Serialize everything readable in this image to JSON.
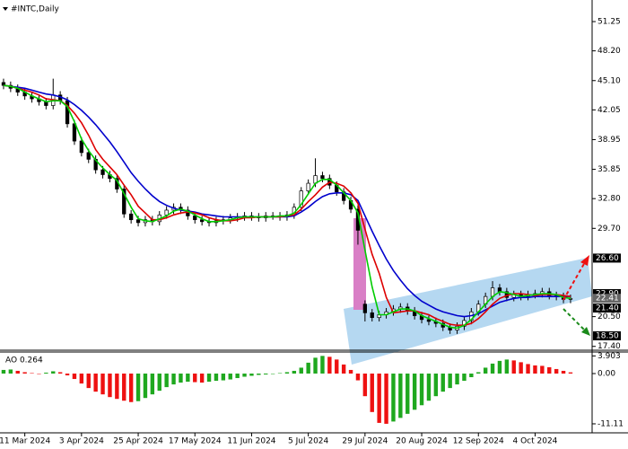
{
  "chart_data": [
    {
      "type": "candlestick",
      "title": "#INTC,Daily",
      "categories": [
        null,
        null,
        null,
        "11 Mar 2024",
        null,
        null,
        null,
        null,
        null,
        null,
        null,
        "3 Apr 2024",
        null,
        null,
        null,
        null,
        null,
        null,
        null,
        "25 Apr 2024",
        null,
        null,
        null,
        null,
        null,
        null,
        null,
        "17 May 2024",
        null,
        null,
        null,
        null,
        null,
        null,
        null,
        "11 Jun 2024",
        null,
        null,
        null,
        null,
        null,
        null,
        null,
        "5 Jul 2024",
        null,
        null,
        null,
        null,
        null,
        null,
        null,
        "29 Jul 2024",
        null,
        null,
        null,
        null,
        null,
        null,
        null,
        "20 Aug 2024",
        null,
        null,
        null,
        null,
        null,
        null,
        null,
        "12 Sep 2024",
        null,
        null,
        null,
        null,
        null,
        null,
        null,
        "4 Oct 2024",
        null,
        null,
        null,
        null,
        null
      ],
      "open": [
        44.9,
        44.6,
        44.3,
        43.9,
        43.5,
        43.2,
        42.9,
        42.5,
        43.6,
        43.0,
        40.6,
        38.8,
        37.6,
        36.9,
        35.8,
        35.3,
        34.9,
        33.8,
        31.2,
        30.6,
        30.3,
        30.6,
        30.4,
        31.1,
        31.6,
        31.9,
        31.6,
        31.0,
        30.6,
        30.4,
        30.3,
        30.5,
        30.6,
        30.8,
        30.9,
        31.0,
        30.9,
        30.8,
        31.0,
        31.0,
        30.9,
        31.1,
        31.9,
        33.6,
        34.4,
        35.2,
        34.9,
        34.2,
        33.5,
        32.6,
        31.7,
        21.8,
        20.9,
        20.4,
        20.7,
        21.0,
        21.3,
        21.5,
        21.1,
        20.6,
        20.2,
        20.0,
        19.8,
        19.4,
        19.1,
        19.5,
        20.1,
        21.0,
        21.8,
        22.6,
        23.5,
        23.1,
        22.5,
        22.8,
        22.6,
        22.8,
        22.9,
        23.1,
        22.7,
        22.6,
        22.3
      ],
      "high": [
        45.3,
        45.0,
        44.7,
        44.3,
        43.9,
        43.6,
        43.3,
        45.3,
        44.0,
        43.4,
        41.0,
        39.2,
        38.0,
        37.3,
        36.2,
        35.7,
        35.3,
        34.2,
        31.6,
        31.0,
        31.0,
        31.0,
        31.5,
        32.0,
        32.3,
        32.3,
        32.0,
        31.4,
        31.0,
        30.8,
        30.9,
        31.0,
        31.2,
        31.3,
        31.4,
        31.4,
        31.3,
        31.4,
        31.4,
        31.4,
        31.5,
        32.3,
        34.0,
        34.8,
        37.0,
        35.6,
        35.3,
        34.6,
        33.9,
        33.0,
        32.1,
        22.2,
        21.3,
        21.1,
        21.4,
        21.7,
        21.9,
        21.9,
        21.5,
        21.0,
        20.6,
        20.4,
        20.2,
        19.8,
        19.9,
        20.5,
        21.4,
        22.2,
        23.0,
        24.2,
        23.9,
        23.5,
        23.2,
        23.2,
        23.2,
        23.3,
        23.5,
        23.5,
        23.1,
        23.0,
        22.8
      ],
      "low": [
        44.2,
        43.9,
        43.5,
        43.1,
        42.8,
        42.5,
        42.1,
        42.1,
        42.6,
        40.2,
        38.4,
        37.2,
        36.5,
        35.4,
        34.9,
        34.5,
        33.4,
        30.8,
        30.2,
        29.9,
        29.9,
        30.0,
        30.0,
        30.7,
        31.2,
        31.2,
        30.6,
        30.2,
        30.0,
        29.9,
        29.9,
        30.1,
        30.2,
        30.4,
        30.5,
        30.5,
        30.4,
        30.4,
        30.6,
        30.5,
        30.5,
        30.7,
        31.5,
        33.2,
        34.0,
        34.5,
        33.8,
        33.1,
        32.2,
        31.3,
        28.0,
        20.0,
        20.0,
        20.0,
        20.3,
        20.6,
        20.9,
        20.7,
        20.2,
        19.8,
        19.6,
        19.4,
        19.0,
        18.7,
        18.7,
        19.1,
        19.7,
        20.6,
        21.4,
        22.2,
        22.7,
        22.1,
        22.1,
        22.2,
        22.2,
        22.4,
        22.5,
        22.3,
        22.2,
        21.9,
        21.9
      ],
      "close": [
        44.6,
        44.3,
        43.9,
        43.5,
        43.2,
        42.9,
        42.5,
        43.6,
        43.0,
        40.6,
        38.8,
        37.6,
        36.9,
        35.8,
        35.3,
        34.9,
        33.8,
        31.2,
        30.6,
        30.3,
        30.6,
        30.4,
        31.1,
        31.6,
        31.9,
        31.6,
        31.0,
        30.6,
        30.4,
        30.3,
        30.5,
        30.6,
        30.8,
        30.9,
        31.0,
        30.9,
        30.8,
        31.0,
        31.0,
        30.9,
        31.1,
        31.9,
        33.6,
        34.4,
        35.2,
        34.9,
        34.2,
        33.5,
        32.6,
        31.7,
        29.5,
        20.9,
        20.4,
        20.7,
        21.0,
        21.3,
        21.5,
        21.1,
        20.6,
        20.2,
        20.0,
        19.8,
        19.4,
        19.1,
        19.5,
        20.1,
        21.0,
        21.8,
        22.6,
        23.5,
        23.1,
        22.5,
        22.8,
        22.6,
        22.8,
        22.9,
        23.1,
        22.7,
        22.6,
        22.3,
        22.4
      ],
      "series": [
        {
          "color": "#0000cc",
          "values": [
            44.6,
            44.5,
            44.4,
            44.3,
            44.1,
            43.9,
            43.7,
            43.6,
            43.4,
            43.1,
            42.6,
            42.0,
            41.3,
            40.5,
            39.6,
            38.7,
            37.7,
            36.6,
            35.5,
            34.6,
            33.8,
            33.1,
            32.5,
            32.1,
            31.8,
            31.6,
            31.5,
            31.4,
            31.2,
            31.1,
            31.0,
            30.9,
            30.9,
            30.9,
            30.9,
            30.9,
            30.9,
            30.9,
            30.9,
            30.9,
            30.9,
            31.0,
            31.4,
            31.9,
            32.5,
            33.0,
            33.3,
            33.4,
            33.4,
            33.2,
            32.6,
            31.0,
            29.4,
            27.9,
            26.5,
            25.3,
            24.3,
            23.4,
            22.7,
            22.1,
            21.7,
            21.3,
            21.0,
            20.8,
            20.6,
            20.5,
            20.6,
            20.8,
            21.2,
            21.6,
            22.0,
            22.2,
            22.4,
            22.5,
            22.5,
            22.6,
            22.6,
            22.6,
            22.6,
            22.6,
            22.6
          ]
        },
        {
          "color": "#dd0000",
          "values": [
            44.6,
            44.5,
            44.3,
            44.1,
            43.9,
            43.6,
            43.2,
            43.1,
            43.0,
            42.5,
            41.7,
            40.7,
            39.4,
            37.9,
            36.9,
            36.1,
            35.3,
            34.2,
            33.2,
            32.0,
            31.3,
            30.6,
            30.6,
            30.8,
            31.1,
            31.3,
            31.4,
            31.3,
            31.1,
            30.8,
            30.6,
            30.5,
            30.5,
            30.6,
            30.8,
            30.8,
            30.9,
            30.9,
            30.9,
            30.9,
            31.0,
            31.1,
            31.7,
            32.5,
            33.2,
            34.0,
            34.5,
            34.4,
            34.1,
            33.4,
            32.3,
            29.6,
            27.0,
            25.0,
            22.5,
            20.9,
            21.0,
            21.1,
            21.1,
            20.9,
            20.7,
            20.3,
            20.0,
            19.7,
            19.6,
            19.6,
            19.8,
            20.3,
            21.0,
            21.8,
            22.4,
            22.7,
            22.9,
            22.9,
            22.8,
            22.7,
            22.8,
            22.8,
            22.8,
            22.7,
            22.6
          ]
        },
        {
          "color": "#00cc00",
          "values": [
            44.6,
            44.5,
            44.3,
            43.9,
            43.5,
            43.2,
            42.9,
            43.0,
            43.0,
            42.4,
            40.8,
            39.0,
            37.8,
            36.8,
            36.0,
            35.3,
            34.7,
            33.3,
            31.9,
            30.7,
            30.5,
            30.4,
            30.7,
            31.0,
            31.5,
            31.7,
            31.5,
            31.1,
            30.7,
            30.4,
            30.4,
            30.5,
            30.6,
            30.8,
            30.9,
            30.9,
            30.9,
            30.9,
            30.9,
            31.0,
            31.0,
            31.3,
            32.2,
            33.3,
            34.4,
            34.8,
            34.8,
            34.2,
            33.4,
            32.6,
            31.3,
            27.4,
            23.6,
            20.7,
            20.7,
            21.0,
            21.3,
            21.3,
            21.1,
            20.6,
            20.3,
            20.0,
            19.7,
            19.4,
            19.3,
            19.6,
            20.2,
            21.0,
            21.8,
            22.6,
            23.1,
            23.0,
            22.8,
            22.6,
            22.7,
            22.8,
            22.9,
            22.9,
            22.8,
            22.5,
            22.4
          ]
        }
      ],
      "ylim": [
        17.0,
        53.5
      ],
      "yticks": [
        51.25,
        {
          "value": 48.2,
          "label": "48.20"
        },
        {
          "value": 45.1,
          "label": "45.10"
        },
        42.05,
        38.95,
        35.85,
        {
          "value": 32.8,
          "label": "32.80"
        },
        {
          "value": 29.7,
          "label": "29.70"
        },
        {
          "value": 20.5,
          "label": "20.50"
        },
        {
          "value": 17.4,
          "label": "17.40"
        }
      ],
      "zones": [
        {
          "from": 22.9,
          "to": 26.6,
          "color": "#f4a7a7"
        },
        {
          "from": 18.5,
          "to": 21.4,
          "color": "#6fbf73"
        }
      ],
      "levels": [
        {
          "value": 26.6,
          "label": "26.60"
        },
        {
          "value": 22.9,
          "label": "22.90"
        },
        {
          "value": 22.41,
          "label": "22.41"
        },
        {
          "value": 21.4,
          "label": "21.40"
        },
        {
          "value": 18.5,
          "label": "18.50"
        }
      ]
    },
    {
      "type": "bar",
      "title": "AO 0.264",
      "up_color": "#1fa81f",
      "down_color": "#ee1111",
      "values": [
        0.8,
        0.9,
        0.6,
        0.3,
        0.1,
        -0.1,
        0.2,
        0.5,
        0.3,
        -0.4,
        -1.2,
        -2.2,
        -3.2,
        -4.0,
        -4.6,
        -5.2,
        -5.6,
        -6.0,
        -6.3,
        -6.1,
        -5.4,
        -4.6,
        -3.8,
        -3.0,
        -2.4,
        -2.0,
        -1.8,
        -1.9,
        -2.0,
        -1.8,
        -1.6,
        -1.5,
        -1.3,
        -1.0,
        -0.7,
        -0.5,
        -0.3,
        -0.2,
        -0.1,
        0.1,
        0.3,
        0.6,
        1.3,
        2.4,
        3.5,
        3.9,
        3.7,
        3.1,
        2.0,
        0.8,
        -1.5,
        -5.0,
        -8.5,
        -10.9,
        -11.1,
        -10.6,
        -9.8,
        -8.9,
        -8.0,
        -7.0,
        -6.0,
        -5.0,
        -4.0,
        -3.2,
        -2.4,
        -1.6,
        -0.8,
        0.3,
        1.3,
        2.2,
        2.8,
        3.1,
        2.9,
        2.5,
        2.1,
        1.8,
        1.7,
        1.4,
        1.0,
        0.6,
        0.264
      ],
      "ylim": [
        -13.1,
        4.76
      ],
      "yticks": [
        3.903,
        {
          "value": 0,
          "label": "0.00"
        },
        -11.11
      ]
    }
  ]
}
